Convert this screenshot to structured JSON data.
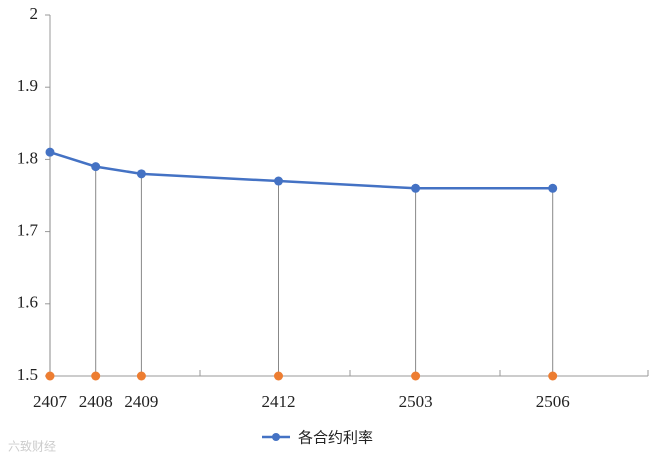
{
  "chart_data": {
    "type": "line",
    "categories": [
      "2407",
      "2408",
      "2409",
      "2412",
      "2503",
      "2506"
    ],
    "series": [
      {
        "name": "各合约利率",
        "color": "#4472c4",
        "values": [
          1.81,
          1.79,
          1.78,
          1.77,
          1.76,
          1.76
        ]
      },
      {
        "color": "#ed7d31",
        "values": [
          1.5,
          1.5,
          1.5,
          1.5,
          1.5,
          1.5
        ]
      }
    ],
    "ylim": [
      1.5,
      2
    ],
    "yticks": [
      1.5,
      1.6,
      1.7,
      1.8,
      1.9,
      2
    ],
    "watermark": "六致财经"
  }
}
